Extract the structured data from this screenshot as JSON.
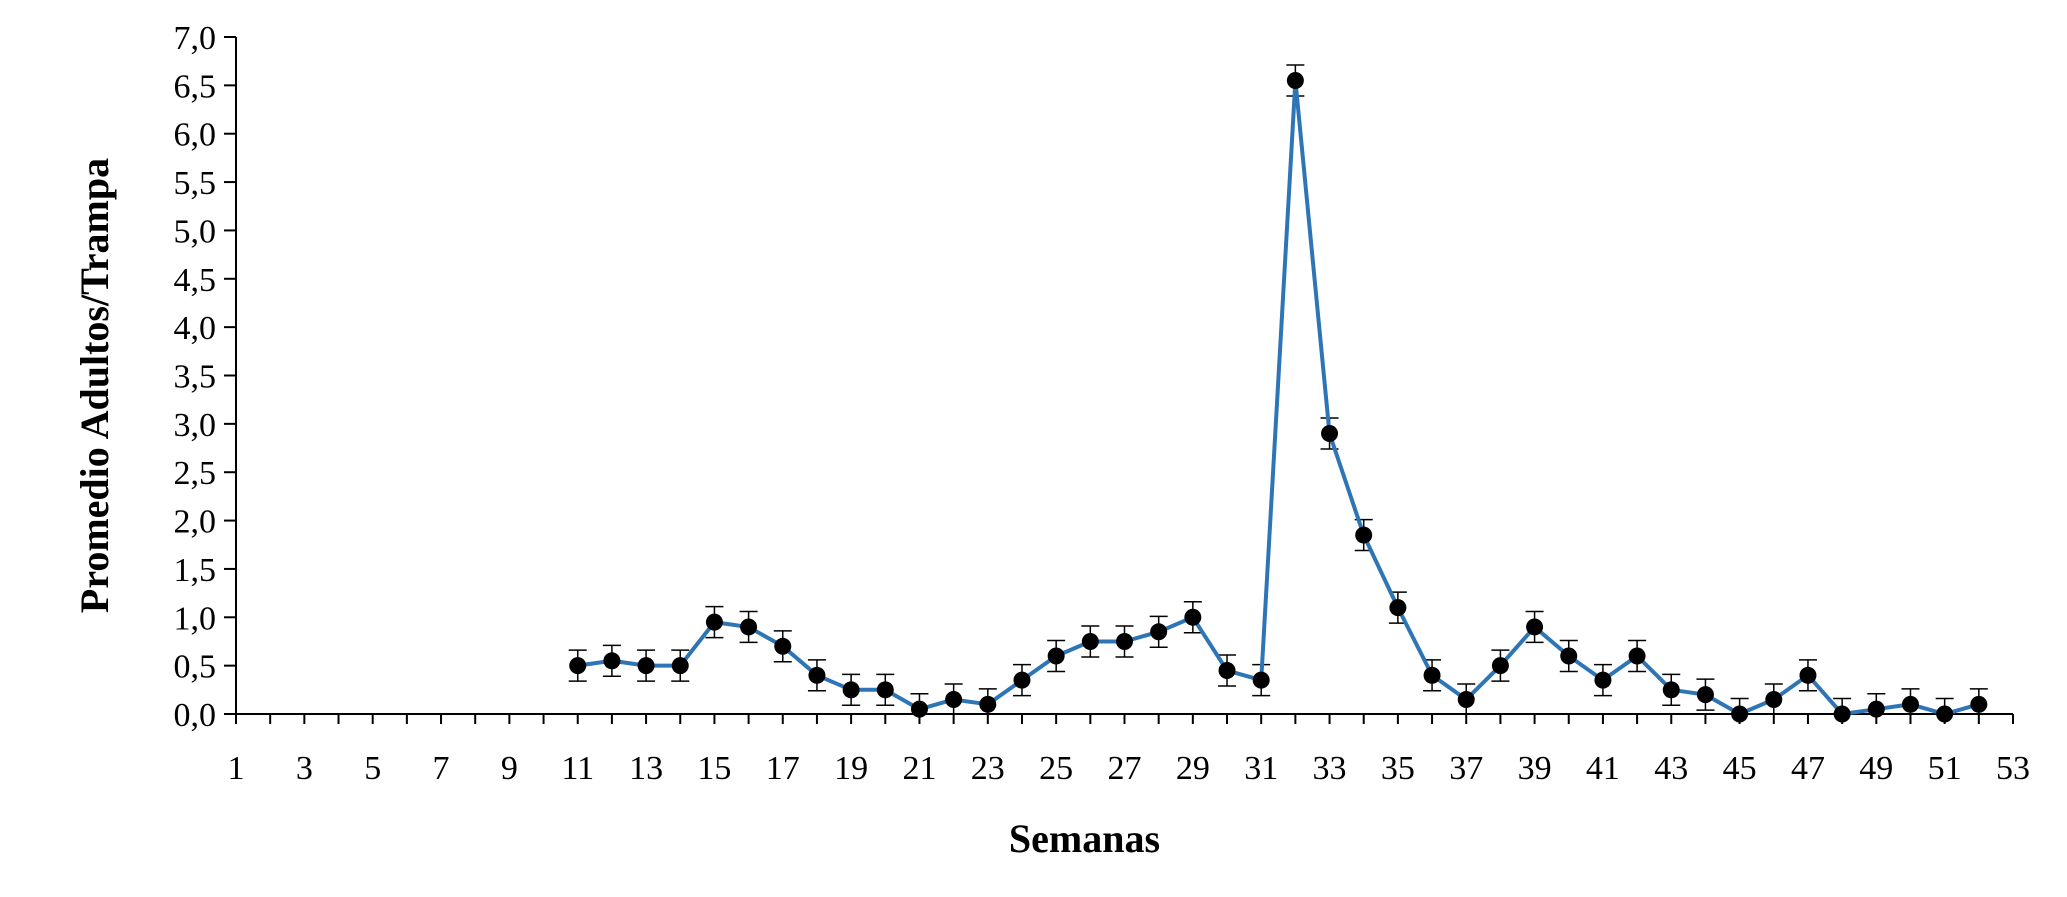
{
  "chart_data": {
    "type": "line",
    "xlabel": "Semanas",
    "ylabel": "Promedio Adultos/Trampa",
    "xlim": [
      1,
      53
    ],
    "ylim": [
      0,
      7
    ],
    "y_ticks": [
      "0,0",
      "0,5",
      "1,0",
      "1,5",
      "2,0",
      "2,5",
      "3,0",
      "3,5",
      "4,0",
      "4,5",
      "5,0",
      "5,5",
      "6,0",
      "6,5",
      "7,0"
    ],
    "x_ticks": [
      "1",
      "3",
      "5",
      "7",
      "9",
      "11",
      "13",
      "15",
      "17",
      "19",
      "21",
      "23",
      "25",
      "27",
      "29",
      "31",
      "33",
      "35",
      "37",
      "39",
      "41",
      "43",
      "45",
      "47",
      "49",
      "51",
      "53"
    ],
    "grid": false,
    "legend": "none",
    "series": [
      {
        "color": "#2e75b6",
        "marker_color": "#000000",
        "error_bar": 0.16,
        "x": [
          11,
          12,
          13,
          14,
          15,
          16,
          17,
          18,
          19,
          20,
          21,
          22,
          23,
          24,
          25,
          26,
          27,
          28,
          29,
          30,
          31,
          32,
          33,
          34,
          35,
          36,
          37,
          38,
          39,
          40,
          41,
          42,
          43,
          44,
          45,
          46,
          47,
          48,
          49,
          50,
          51,
          52
        ],
        "y": [
          0.5,
          0.55,
          0.5,
          0.5,
          0.95,
          0.9,
          0.7,
          0.4,
          0.25,
          0.25,
          0.05,
          0.15,
          0.1,
          0.35,
          0.6,
          0.75,
          0.75,
          0.85,
          1.0,
          0.45,
          0.35,
          6.55,
          2.9,
          1.85,
          1.1,
          0.4,
          0.15,
          0.5,
          0.9,
          0.6,
          0.35,
          0.6,
          0.25,
          0.2,
          0.0,
          0.15,
          0.4,
          0.0,
          0.05,
          0.1,
          0.0,
          0.1
        ]
      }
    ]
  }
}
